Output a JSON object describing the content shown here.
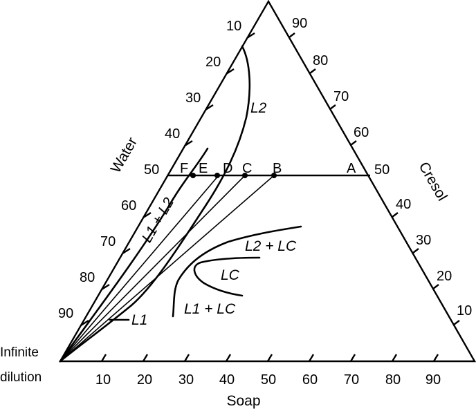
{
  "axes": {
    "water": {
      "title": "Water",
      "ticks": [
        "10",
        "20",
        "30",
        "40",
        "50",
        "60",
        "70",
        "80",
        "90"
      ]
    },
    "cresol": {
      "title": "Cresol",
      "ticks": [
        "90",
        "80",
        "70",
        "60",
        "50",
        "40",
        "30",
        "20",
        "10"
      ]
    },
    "soap": {
      "title": "Soap",
      "ticks": [
        "10",
        "20",
        "30",
        "40",
        "50",
        "60",
        "70",
        "80",
        "90"
      ]
    }
  },
  "corner_label": {
    "line1": "Infinite",
    "line2": "dilution"
  },
  "regions": {
    "l2": "L2",
    "l1_plus_l2": "L1 + L2",
    "l2_plus_lc": "L2 + LC",
    "lc": "LC",
    "l1_plus_lc": "L1 + LC",
    "l1": "L1"
  },
  "tie_line_points": [
    "F",
    "E",
    "D",
    "C",
    "B",
    "A"
  ]
}
